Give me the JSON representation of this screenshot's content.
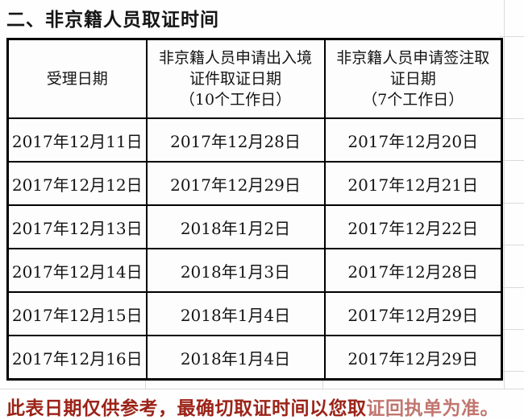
{
  "title": "二、非京籍人员取证时间",
  "table": {
    "headers": [
      "受理日期",
      "非京籍人员申请出入境\n证件取证日期\n（10个工作日）",
      "非京籍人员申请签注取\n证日期\n（7个工作日）"
    ],
    "rows": [
      [
        "2017年12月11日",
        "2017年12月28日",
        "2017年12月20日"
      ],
      [
        "2017年12月12日",
        "2017年12月29日",
        "2017年12月21日"
      ],
      [
        "2017年12月13日",
        "2018年1月2日",
        "2017年12月22日"
      ],
      [
        "2017年12月14日",
        "2018年1月3日",
        "2017年12月28日"
      ],
      [
        "2017年12月15日",
        "2018年1月4日",
        "2017年12月29日"
      ],
      [
        "2017年12月16日",
        "2018年1月4日",
        "2017年12月29日"
      ]
    ]
  },
  "footer": {
    "text_main": "此表日期仅供参考，最确切取证时间以您取",
    "text_faded": "证回执单为准。"
  },
  "colors": {
    "footer_text": "#9c2318",
    "table_border": "#000000",
    "grid_line": "#dadada",
    "title_text": "#151515"
  }
}
